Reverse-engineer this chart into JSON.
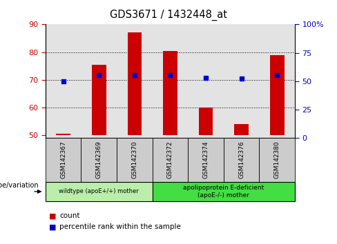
{
  "title": "GDS3671 / 1432448_at",
  "samples": [
    "GSM142367",
    "GSM142369",
    "GSM142370",
    "GSM142372",
    "GSM142374",
    "GSM142376",
    "GSM142380"
  ],
  "bar_values": [
    50.5,
    75.5,
    87.0,
    80.5,
    60.0,
    54.0,
    79.0
  ],
  "percentile_values": [
    50,
    55,
    55,
    55,
    53,
    52,
    55
  ],
  "bar_color": "#cc0000",
  "dot_color": "#0000cc",
  "ylim_left": [
    49,
    90
  ],
  "ylim_right": [
    0,
    100
  ],
  "yticks_left": [
    50,
    60,
    70,
    80,
    90
  ],
  "yticks_right": [
    0,
    25,
    50,
    75,
    100
  ],
  "yticklabels_right": [
    "0",
    "25",
    "50",
    "75",
    "100%"
  ],
  "baseline": 50,
  "group1_label": "wildtype (apoE+/+) mother",
  "group2_label": "apolipoprotein E-deficient\n(apoE-/-) mother",
  "group1_color": "#bbeeaa",
  "group2_color": "#44dd44",
  "tick_color_left": "#cc0000",
  "tick_color_right": "#0000cc",
  "gridline_color": "#000000",
  "legend_count": "count",
  "legend_pct": "percentile rank within the sample",
  "genotype_label": "genotype/variation",
  "sample_box_color": "#cccccc",
  "plot_bg": "#ffffff",
  "bar_width": 0.4
}
